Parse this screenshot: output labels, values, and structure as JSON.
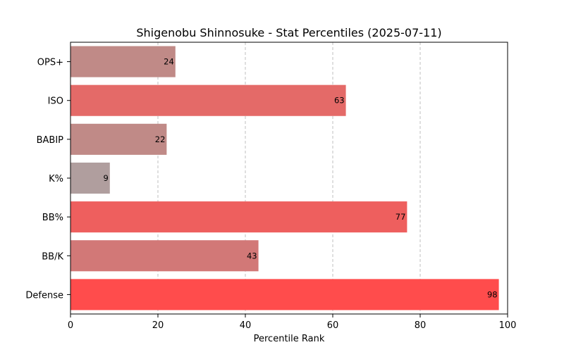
{
  "chart_data": {
    "type": "bar",
    "orientation": "horizontal",
    "title": "Shigenobu Shinnosuke - Stat Percentiles (2025-07-11)",
    "xlabel": "Percentile Rank",
    "ylabel": "",
    "xlim": [
      0,
      100
    ],
    "xticks": [
      0,
      20,
      40,
      60,
      80,
      100
    ],
    "grid": "x-dashed",
    "categories": [
      "OPS+",
      "ISO",
      "BABIP",
      "K%",
      "BB%",
      "BB/K",
      "Defense"
    ],
    "values": [
      24,
      63,
      22,
      9,
      77,
      43,
      98
    ],
    "colors": [
      "#c08a87",
      "#e46a68",
      "#c08a87",
      "#b09e9e",
      "#ee5f5e",
      "#d27877",
      "#ff4c4c"
    ]
  }
}
